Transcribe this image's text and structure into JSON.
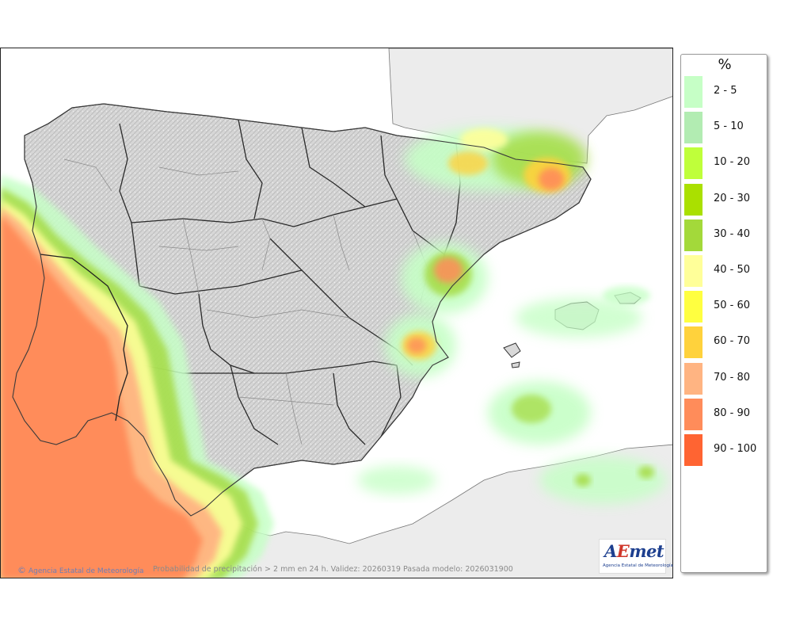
{
  "legend": {
    "title": "%",
    "items": [
      {
        "label": "2 - 5",
        "color": "#c6ffc6"
      },
      {
        "label": "5 - 10",
        "color": "#b2ecb2"
      },
      {
        "label": "10 - 20",
        "color": "#bfff3a"
      },
      {
        "label": "20 - 30",
        "color": "#aae000"
      },
      {
        "label": "30 - 40",
        "color": "#a3d93a"
      },
      {
        "label": "40 - 50",
        "color": "#ffff99"
      },
      {
        "label": "50 - 60",
        "color": "#ffff40"
      },
      {
        "label": "60 - 70",
        "color": "#ffd23c"
      },
      {
        "label": "70 - 80",
        "color": "#ffb482"
      },
      {
        "label": "80 - 90",
        "color": "#ff8c5a"
      },
      {
        "label": "90 - 100",
        "color": "#ff6432"
      }
    ]
  },
  "footer": {
    "credit": "Agencia Estatal de Meteorología",
    "copyright_symbol": "©",
    "caption": "Probabilidad de precipitación > 2 mm en 24 h. Validez: 20260319 Pasada modelo: 2026031900"
  },
  "logo": {
    "part1": "A",
    "part2": "E",
    "part3": "met",
    "subtitle": "Agencia Estatal de Meteorología"
  },
  "map": {
    "sea_color": "#ffffff",
    "land_color": "#d9d9d9",
    "foreign_land_color": "#ececec",
    "border_color": "#3a3a3a"
  }
}
